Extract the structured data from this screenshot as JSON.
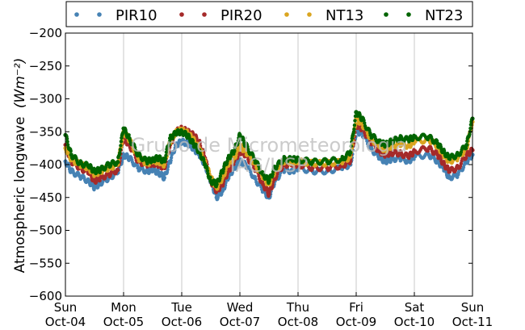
{
  "chart_data": {
    "type": "scatter",
    "title": "",
    "ylabel": "Atmospheric longwave",
    "ylabel_unit": "(Wm⁻²)",
    "xlabel": "",
    "ylim": [
      -600,
      -200
    ],
    "yticks": [
      -600,
      -550,
      -500,
      -450,
      -400,
      -350,
      -300,
      -250,
      -200
    ],
    "ytick_labels": [
      "−600",
      "−550",
      "−500",
      "−450",
      "−400",
      "−350",
      "−300",
      "−250",
      "−200"
    ],
    "x_days": [
      "Sun",
      "Mon",
      "Tue",
      "Wed",
      "Thu",
      "Fri",
      "Sat",
      "Sun"
    ],
    "x_dates": [
      "Oct-04",
      "Oct-05",
      "Oct-06",
      "Oct-07",
      "Oct-08",
      "Oct-09",
      "Oct-10",
      "Oct-11"
    ],
    "grid": "vertical",
    "legend_position": "top",
    "watermark": [
      "Grupo de Micrometeorologia",
      "IAG/USP"
    ],
    "series": [
      {
        "name": "PIR10",
        "color": "#4682b4",
        "x": [
          0,
          0.1,
          0.25,
          0.4,
          0.5,
          0.6,
          0.75,
          0.9,
          1,
          1.1,
          1.25,
          1.4,
          1.5,
          1.6,
          1.7,
          1.8,
          1.9,
          2,
          2.1,
          2.2,
          2.3,
          2.4,
          2.5,
          2.6,
          2.7,
          2.8,
          2.9,
          3,
          3.1,
          3.25,
          3.4,
          3.5,
          3.6,
          3.75,
          3.9,
          4,
          4.25,
          4.5,
          4.75,
          4.9,
          5,
          5.1,
          5.25,
          5.4,
          5.5,
          5.6,
          5.75,
          5.9,
          6,
          6.25,
          6.4,
          6.5,
          6.6,
          6.75,
          6.9,
          7
        ],
        "y": [
          -395,
          -410,
          -418,
          -425,
          -435,
          -428,
          -420,
          -412,
          -385,
          -390,
          -405,
          -410,
          -408,
          -412,
          -420,
          -395,
          -370,
          -365,
          -368,
          -375,
          -385,
          -400,
          -425,
          -450,
          -440,
          -420,
          -405,
          -395,
          -400,
          -420,
          -440,
          -450,
          -425,
          -408,
          -410,
          -405,
          -410,
          -410,
          -405,
          -400,
          -350,
          -352,
          -375,
          -390,
          -395,
          -392,
          -390,
          -395,
          -388,
          -385,
          -395,
          -405,
          -420,
          -415,
          -395,
          -385
        ]
      },
      {
        "name": "PIR20",
        "color": "#a52a2a",
        "x": [
          0,
          0.1,
          0.25,
          0.4,
          0.5,
          0.6,
          0.75,
          0.9,
          1,
          1.1,
          1.25,
          1.4,
          1.5,
          1.6,
          1.7,
          1.8,
          1.9,
          2,
          2.1,
          2.2,
          2.3,
          2.4,
          2.5,
          2.6,
          2.7,
          2.8,
          2.9,
          3,
          3.1,
          3.25,
          3.4,
          3.5,
          3.6,
          3.75,
          3.9,
          4,
          4.25,
          4.5,
          4.75,
          4.9,
          5,
          5.1,
          5.25,
          5.4,
          5.5,
          5.6,
          5.75,
          5.9,
          6,
          6.25,
          6.4,
          6.5,
          6.6,
          6.75,
          6.9,
          7
        ],
        "y": [
          -370,
          -395,
          -405,
          -412,
          -425,
          -420,
          -415,
          -408,
          -360,
          -370,
          -395,
          -400,
          -398,
          -400,
          -405,
          -370,
          -350,
          -345,
          -350,
          -355,
          -365,
          -390,
          -425,
          -440,
          -430,
          -410,
          -395,
          -380,
          -385,
          -405,
          -430,
          -445,
          -420,
          -400,
          -400,
          -400,
          -405,
          -405,
          -402,
          -395,
          -340,
          -345,
          -365,
          -380,
          -385,
          -382,
          -383,
          -388,
          -380,
          -375,
          -385,
          -398,
          -410,
          -405,
          -385,
          -378
        ]
      },
      {
        "name": "NT13",
        "color": "#daa520",
        "x": [
          0,
          0.1,
          0.25,
          0.4,
          0.5,
          0.6,
          0.75,
          0.9,
          1,
          1.1,
          1.25,
          1.4,
          1.5,
          1.6,
          1.7,
          1.8,
          1.9,
          2,
          2.1,
          2.2,
          2.3,
          2.4,
          2.5,
          2.6,
          2.7,
          2.8,
          2.9,
          3,
          3.1,
          3.25,
          3.4,
          3.5,
          3.6,
          3.75,
          3.9,
          4,
          4.25,
          4.5,
          4.75,
          4.9,
          5,
          5.1,
          5.25,
          5.4,
          5.5,
          5.6,
          5.75,
          5.9,
          6,
          6.25,
          6.4,
          6.5,
          6.6,
          6.75,
          6.9,
          7
        ],
        "y": [
          -375,
          -392,
          -400,
          -405,
          -415,
          -410,
          -405,
          -400,
          -350,
          -362,
          -390,
          -398,
          -395,
          -395,
          -400,
          -365,
          -350,
          -348,
          -352,
          -362,
          -375,
          -395,
          -420,
          -435,
          -420,
          -400,
          -390,
          -372,
          -380,
          -398,
          -420,
          -430,
          -410,
          -395,
          -396,
          -395,
          -398,
          -398,
          -396,
          -388,
          -330,
          -338,
          -360,
          -372,
          -378,
          -372,
          -368,
          -372,
          -365,
          -362,
          -372,
          -385,
          -395,
          -390,
          -375,
          -335
        ]
      },
      {
        "name": "NT23",
        "color": "#006400",
        "x": [
          0,
          0.1,
          0.25,
          0.4,
          0.5,
          0.6,
          0.75,
          0.9,
          1,
          1.1,
          1.25,
          1.4,
          1.5,
          1.6,
          1.7,
          1.8,
          1.9,
          2,
          2.1,
          2.2,
          2.3,
          2.4,
          2.5,
          2.6,
          2.7,
          2.8,
          2.9,
          3,
          3.1,
          3.25,
          3.4,
          3.5,
          3.6,
          3.75,
          3.9,
          4,
          4.25,
          4.5,
          4.75,
          4.9,
          5,
          5.1,
          5.25,
          5.4,
          5.5,
          5.6,
          5.75,
          5.9,
          6,
          6.25,
          6.4,
          6.5,
          6.6,
          6.75,
          6.9,
          7
        ],
        "y": [
          -355,
          -385,
          -398,
          -402,
          -410,
          -408,
          -400,
          -396,
          -345,
          -360,
          -385,
          -395,
          -392,
          -390,
          -395,
          -360,
          -352,
          -350,
          -356,
          -368,
          -380,
          -400,
          -425,
          -430,
          -410,
          -390,
          -380,
          -355,
          -370,
          -392,
          -415,
          -425,
          -405,
          -392,
          -392,
          -392,
          -396,
          -395,
          -392,
          -382,
          -320,
          -330,
          -355,
          -365,
          -370,
          -365,
          -360,
          -362,
          -358,
          -358,
          -368,
          -380,
          -390,
          -385,
          -370,
          -330
        ]
      }
    ]
  }
}
